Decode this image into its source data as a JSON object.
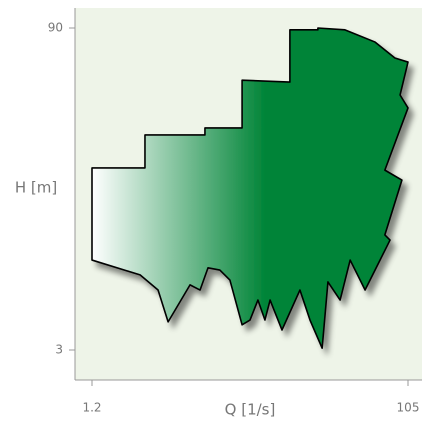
{
  "chart_data": {
    "type": "area",
    "xlabel": "Q [1/s]",
    "ylabel": "H [m]",
    "xlim": [
      1.2,
      105
    ],
    "ylim": [
      3,
      90
    ],
    "xticks": [
      1.2,
      105
    ],
    "yticks": [
      3,
      90
    ],
    "color": "#008437",
    "x": [
      1.2,
      18.6,
      18.6,
      38.3,
      38.3,
      50.5,
      50.5,
      66.2,
      66.2,
      75.4,
      75.4,
      84.3,
      94.2,
      100.7,
      105,
      102.4,
      105,
      97.4,
      103.0,
      97.4,
      99.1,
      90.9,
      86.0,
      82.7,
      78.7,
      76.8,
      72.8,
      69.5,
      63.6,
      59.7,
      58.0,
      55.7,
      53.1,
      50.5,
      46.5,
      43.2,
      39.3,
      36.7,
      33.4,
      26.2,
      22.9,
      17.0,
      1.2
    ],
    "y": [
      52.2,
      52.2,
      61.1,
      61.1,
      63.0,
      63.0,
      75.9,
      75.4,
      89.5,
      89.5,
      90,
      89.5,
      86.2,
      81.9,
      80.8,
      71.9,
      68.4,
      51.6,
      48.9,
      34.1,
      32.7,
      19.2,
      27.3,
      16.5,
      21.4,
      3.5,
      11.1,
      19.2,
      8.4,
      16.5,
      11.1,
      16.5,
      11.1,
      9.8,
      21.9,
      24.6,
      25.2,
      19.2,
      20.6,
      10.6,
      19.2,
      23.3,
      27.3
    ]
  }
}
